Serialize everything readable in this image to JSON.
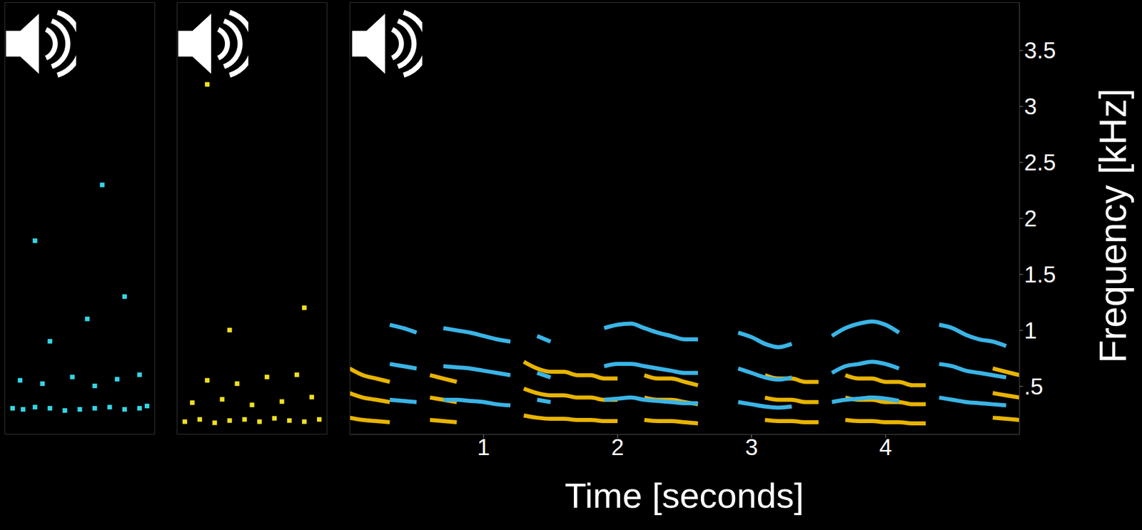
{
  "chart_data": [
    {
      "type": "scatter",
      "tick_labels": false,
      "xlim": [
        0,
        1
      ],
      "ylim": [
        0.07,
        3.93
      ],
      "series": [
        {
          "color": "#33d6e6",
          "x": [
            0.05,
            0.12,
            0.2,
            0.3,
            0.4,
            0.5,
            0.6,
            0.7,
            0.8,
            0.9,
            0.95,
            0.1,
            0.25,
            0.45,
            0.6,
            0.75,
            0.9,
            0.3,
            0.55,
            0.8,
            0.2,
            0.65
          ],
          "values": [
            0.3,
            0.29,
            0.31,
            0.3,
            0.28,
            0.29,
            0.3,
            0.31,
            0.29,
            0.3,
            0.32,
            0.55,
            0.52,
            0.58,
            0.5,
            0.56,
            0.6,
            0.9,
            1.1,
            1.3,
            1.8,
            2.3
          ]
        }
      ]
    },
    {
      "type": "scatter",
      "tick_labels": false,
      "xlim": [
        0,
        1
      ],
      "ylim": [
        0.07,
        3.93
      ],
      "series": [
        {
          "color": "#f0e020",
          "x": [
            0.05,
            0.15,
            0.25,
            0.35,
            0.45,
            0.55,
            0.65,
            0.75,
            0.85,
            0.95,
            0.1,
            0.3,
            0.5,
            0.7,
            0.9,
            0.2,
            0.4,
            0.6,
            0.8,
            0.35,
            0.85,
            0.2
          ],
          "values": [
            0.18,
            0.2,
            0.17,
            0.19,
            0.2,
            0.18,
            0.21,
            0.19,
            0.18,
            0.2,
            0.35,
            0.38,
            0.33,
            0.36,
            0.4,
            0.55,
            0.52,
            0.58,
            0.6,
            1.0,
            1.2,
            3.2
          ]
        }
      ]
    },
    {
      "type": "line",
      "xlabel": "Time [seconds]",
      "ylabel": "Frequency [kHz]",
      "xlim": [
        0,
        5
      ],
      "ylim": [
        0.07,
        3.93
      ],
      "xticks": [
        1,
        2,
        3,
        4
      ],
      "yticks": [
        {
          "value": 0.5,
          "label": ".5"
        },
        1,
        1.5,
        2,
        2.5,
        3,
        3.5
      ],
      "x": [
        0,
        0.1,
        0.2,
        0.3,
        0.4,
        0.5,
        0.6,
        0.7,
        0.8,
        0.9,
        1,
        1.1,
        1.2,
        1.3,
        1.4,
        1.5,
        1.6,
        1.7,
        1.8,
        1.9,
        2,
        2.1,
        2.2,
        2.3,
        2.4,
        2.5,
        2.6,
        2.7,
        2.8,
        2.9,
        3,
        3.1,
        3.2,
        3.3,
        3.4,
        3.5,
        3.6,
        3.7,
        3.8,
        3.9,
        4,
        4.1,
        4.2,
        4.3,
        4.4,
        4.5,
        4.6,
        4.7,
        4.8,
        4.9,
        5
      ],
      "series": [
        {
          "color": "#e8b400",
          "values": [
            0.22,
            0.2,
            0.19,
            0.18,
            null,
            null,
            0.2,
            0.19,
            0.18,
            null,
            null,
            null,
            null,
            0.24,
            0.22,
            0.21,
            0.21,
            0.2,
            0.2,
            0.19,
            0.19,
            null,
            0.2,
            0.19,
            0.19,
            0.18,
            0.17,
            null,
            null,
            null,
            null,
            0.2,
            0.19,
            0.19,
            0.18,
            0.18,
            null,
            0.2,
            0.19,
            0.19,
            0.18,
            0.18,
            0.17,
            0.17,
            null,
            null,
            null,
            null,
            0.22,
            0.21,
            0.2
          ]
        },
        {
          "color": "#e8b400",
          "values": [
            0.44,
            0.4,
            0.38,
            0.36,
            null,
            null,
            0.4,
            0.38,
            0.36,
            null,
            null,
            null,
            null,
            0.48,
            0.44,
            0.42,
            0.42,
            0.4,
            0.4,
            0.38,
            0.38,
            null,
            0.4,
            0.38,
            0.38,
            0.36,
            0.34,
            null,
            null,
            null,
            null,
            0.4,
            0.38,
            0.38,
            0.36,
            0.36,
            null,
            0.4,
            0.38,
            0.38,
            0.36,
            0.36,
            0.34,
            0.34,
            null,
            null,
            null,
            null,
            0.44,
            0.42,
            0.4
          ]
        },
        {
          "color": "#e8b400",
          "values": [
            0.66,
            0.6,
            0.57,
            0.54,
            null,
            null,
            0.6,
            0.57,
            0.54,
            null,
            null,
            null,
            null,
            0.72,
            0.66,
            0.63,
            0.63,
            0.6,
            0.6,
            0.57,
            0.57,
            null,
            0.6,
            0.57,
            0.57,
            0.54,
            0.51,
            null,
            null,
            null,
            null,
            0.6,
            0.57,
            0.57,
            0.54,
            0.54,
            null,
            0.6,
            0.57,
            0.57,
            0.54,
            0.54,
            0.51,
            0.51,
            null,
            null,
            null,
            null,
            0.66,
            0.63,
            0.6
          ]
        },
        {
          "color": "#3ab4e6",
          "values": [
            null,
            null,
            null,
            0.38,
            0.37,
            0.36,
            null,
            0.38,
            0.38,
            0.37,
            0.36,
            0.34,
            0.33,
            null,
            0.38,
            0.36,
            null,
            null,
            null,
            0.38,
            0.39,
            0.4,
            0.38,
            0.37,
            0.36,
            0.35,
            0.35,
            null,
            null,
            0.36,
            0.34,
            0.32,
            0.31,
            0.32,
            null,
            null,
            0.36,
            0.38,
            0.39,
            0.4,
            0.39,
            0.37,
            null,
            null,
            0.4,
            0.38,
            0.36,
            0.35,
            0.34,
            0.33,
            null
          ]
        },
        {
          "color": "#3ab4e6",
          "values": [
            null,
            null,
            null,
            0.7,
            0.68,
            0.66,
            null,
            0.68,
            0.67,
            0.66,
            0.64,
            0.62,
            0.6,
            null,
            0.62,
            0.58,
            null,
            null,
            null,
            0.68,
            0.7,
            0.7,
            0.68,
            0.66,
            0.64,
            0.62,
            0.62,
            null,
            null,
            0.66,
            0.62,
            0.58,
            0.56,
            0.58,
            null,
            null,
            0.62,
            0.68,
            0.7,
            0.72,
            0.7,
            0.66,
            null,
            null,
            0.7,
            0.68,
            0.64,
            0.62,
            0.6,
            0.58,
            null
          ]
        },
        {
          "color": "#3ab4e6",
          "values": [
            null,
            null,
            null,
            1.05,
            1.02,
            0.98,
            null,
            1.02,
            1.0,
            0.98,
            0.95,
            0.92,
            0.9,
            null,
            0.95,
            0.9,
            null,
            null,
            null,
            1.02,
            1.05,
            1.06,
            1.02,
            0.98,
            0.95,
            0.92,
            0.92,
            null,
            null,
            0.98,
            0.94,
            0.88,
            0.85,
            0.88,
            null,
            null,
            0.95,
            1.02,
            1.06,
            1.08,
            1.05,
            0.98,
            null,
            null,
            1.05,
            1.02,
            0.96,
            0.92,
            0.9,
            0.86,
            null
          ]
        }
      ]
    }
  ]
}
